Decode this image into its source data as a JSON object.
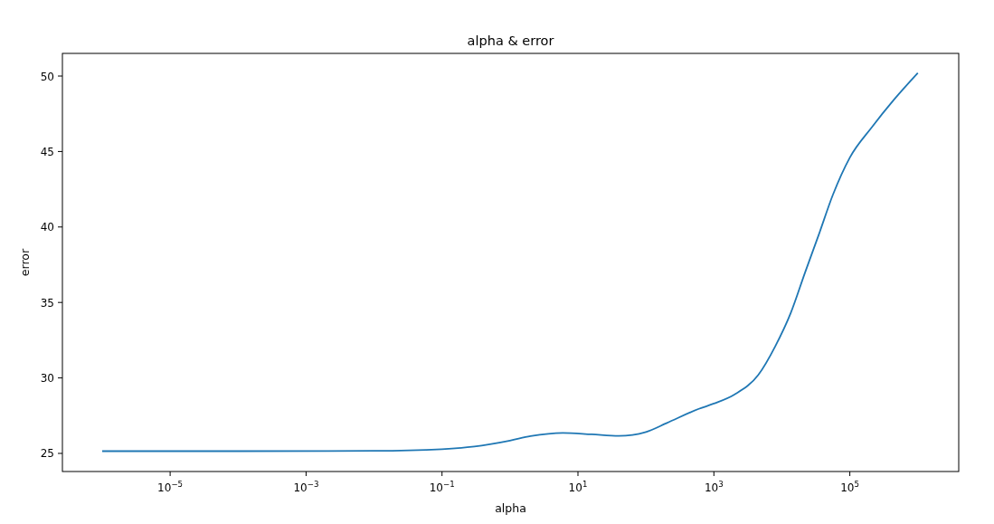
{
  "chart_data": {
    "type": "line",
    "title": "alpha & error",
    "xlabel": "alpha",
    "ylabel": "error",
    "log": "x",
    "xlim": [
      2.6e-07,
      4000000.0
    ],
    "ylim": [
      23.8,
      51.5
    ],
    "xticks": [
      {
        "value": 1e-05,
        "label": "10$^{−5}$"
      },
      {
        "value": 0.001,
        "label": "10$^{−3}$"
      },
      {
        "value": 0.1,
        "label": "10$^{−1}$"
      },
      {
        "value": 10,
        "label": "10$^{1}$"
      },
      {
        "value": 1000,
        "label": "10$^{3}$"
      },
      {
        "value": 100000,
        "label": "10$^{5}$"
      }
    ],
    "yticks": [
      25,
      30,
      35,
      40,
      45,
      50
    ],
    "grid": false,
    "marker": "none",
    "line_style": "solid",
    "series": [
      {
        "color": "#1f77b4",
        "x": [
          1e-06,
          0.0001,
          0.01,
          0.1,
          0.3,
          1,
          2,
          6,
          16,
          40,
          100,
          200,
          600,
          1000,
          2000,
          4500,
          8000,
          13500,
          22000,
          35000,
          56000,
          100000,
          210000,
          440000,
          1000000
        ],
        "values": [
          25.15,
          25.15,
          25.17,
          25.28,
          25.45,
          25.85,
          26.14,
          26.36,
          26.26,
          26.16,
          26.42,
          27.0,
          27.95,
          28.3,
          28.9,
          30.2,
          32.1,
          34.3,
          37.0,
          39.5,
          42.1,
          44.6,
          46.6,
          48.4,
          50.2
        ]
      }
    ]
  }
}
